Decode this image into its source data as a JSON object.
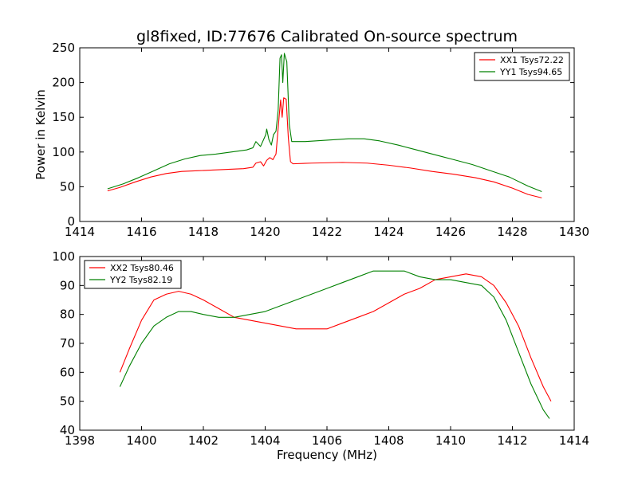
{
  "chart_data": [
    {
      "type": "line",
      "title": "gl8fixed, ID:77676 Calibrated On-source spectrum",
      "xlabel": "",
      "ylabel": "Power in Kelvin",
      "xlim": [
        1414,
        1430
      ],
      "ylim": [
        0,
        250
      ],
      "xticks": [
        1414,
        1416,
        1418,
        1420,
        1422,
        1424,
        1426,
        1428,
        1430
      ],
      "yticks": [
        0,
        50,
        100,
        150,
        200,
        250
      ],
      "grid": false,
      "legend_position": "top-right",
      "series": [
        {
          "name": "XX1 Tsys72.22",
          "color": "#ff0000",
          "points": [
            [
              1414.9,
              44
            ],
            [
              1415.3,
              49
            ],
            [
              1415.8,
              57
            ],
            [
              1416.3,
              64
            ],
            [
              1416.8,
              69
            ],
            [
              1417.3,
              72
            ],
            [
              1417.8,
              73
            ],
            [
              1418.3,
              74
            ],
            [
              1418.8,
              75
            ],
            [
              1419.3,
              76
            ],
            [
              1419.6,
              78
            ],
            [
              1419.7,
              84
            ],
            [
              1419.85,
              86
            ],
            [
              1419.95,
              80
            ],
            [
              1420.05,
              88
            ],
            [
              1420.15,
              92
            ],
            [
              1420.25,
              89
            ],
            [
              1420.35,
              97
            ],
            [
              1420.45,
              150
            ],
            [
              1420.5,
              175
            ],
            [
              1420.55,
              150
            ],
            [
              1420.6,
              178
            ],
            [
              1420.68,
              176
            ],
            [
              1420.75,
              120
            ],
            [
              1420.82,
              86
            ],
            [
              1420.9,
              83
            ],
            [
              1421.5,
              84
            ],
            [
              1422.5,
              85
            ],
            [
              1423.3,
              84
            ],
            [
              1424.0,
              81
            ],
            [
              1424.7,
              77
            ],
            [
              1425.4,
              72
            ],
            [
              1426.1,
              68
            ],
            [
              1426.8,
              63
            ],
            [
              1427.4,
              57
            ],
            [
              1428.0,
              48
            ],
            [
              1428.5,
              39
            ],
            [
              1428.95,
              34
            ]
          ]
        },
        {
          "name": "YY1 Tsys94.65",
          "color": "#008000",
          "points": [
            [
              1414.9,
              47
            ],
            [
              1415.4,
              54
            ],
            [
              1415.9,
              63
            ],
            [
              1416.4,
              73
            ],
            [
              1416.9,
              83
            ],
            [
              1417.4,
              90
            ],
            [
              1417.9,
              95
            ],
            [
              1418.4,
              97
            ],
            [
              1418.9,
              100
            ],
            [
              1419.4,
              103
            ],
            [
              1419.6,
              106
            ],
            [
              1419.7,
              115
            ],
            [
              1419.85,
              108
            ],
            [
              1419.95,
              118
            ],
            [
              1420.02,
              125
            ],
            [
              1420.05,
              133
            ],
            [
              1420.12,
              118
            ],
            [
              1420.2,
              110
            ],
            [
              1420.27,
              125
            ],
            [
              1420.35,
              130
            ],
            [
              1420.42,
              160
            ],
            [
              1420.48,
              235
            ],
            [
              1420.53,
              240
            ],
            [
              1420.57,
              200
            ],
            [
              1420.62,
              242
            ],
            [
              1420.7,
              230
            ],
            [
              1420.78,
              140
            ],
            [
              1420.86,
              115
            ],
            [
              1421.3,
              115
            ],
            [
              1422.0,
              117
            ],
            [
              1422.7,
              119
            ],
            [
              1423.2,
              119
            ],
            [
              1423.7,
              116
            ],
            [
              1424.3,
              110
            ],
            [
              1424.9,
              103
            ],
            [
              1425.5,
              96
            ],
            [
              1426.1,
              89
            ],
            [
              1426.7,
              82
            ],
            [
              1427.3,
              73
            ],
            [
              1427.9,
              64
            ],
            [
              1428.5,
              51
            ],
            [
              1428.95,
              43
            ]
          ]
        }
      ]
    },
    {
      "type": "line",
      "title": "",
      "xlabel": "Frequency (MHz)",
      "ylabel": "",
      "xlim": [
        1398,
        1414
      ],
      "ylim": [
        40,
        100
      ],
      "xticks": [
        1398,
        1400,
        1402,
        1404,
        1406,
        1408,
        1410,
        1412,
        1414
      ],
      "yticks": [
        40,
        50,
        60,
        70,
        80,
        90,
        100
      ],
      "grid": false,
      "legend_position": "top-left",
      "series": [
        {
          "name": "XX2 Tsys80.46",
          "color": "#ff0000",
          "points": [
            [
              1399.3,
              60
            ],
            [
              1399.6,
              68
            ],
            [
              1400.0,
              78
            ],
            [
              1400.4,
              85
            ],
            [
              1400.8,
              87
            ],
            [
              1401.2,
              88
            ],
            [
              1401.6,
              87
            ],
            [
              1402.0,
              85
            ],
            [
              1402.5,
              82
            ],
            [
              1403.0,
              79
            ],
            [
              1403.5,
              78
            ],
            [
              1404.0,
              77
            ],
            [
              1404.5,
              76
            ],
            [
              1405.0,
              75
            ],
            [
              1405.5,
              75
            ],
            [
              1406.0,
              75
            ],
            [
              1406.5,
              77
            ],
            [
              1407.0,
              79
            ],
            [
              1407.5,
              81
            ],
            [
              1408.0,
              84
            ],
            [
              1408.5,
              87
            ],
            [
              1409.0,
              89
            ],
            [
              1409.5,
              92
            ],
            [
              1410.0,
              93
            ],
            [
              1410.5,
              94
            ],
            [
              1411.0,
              93
            ],
            [
              1411.4,
              90
            ],
            [
              1411.8,
              84
            ],
            [
              1412.2,
              76
            ],
            [
              1412.6,
              65
            ],
            [
              1413.0,
              55
            ],
            [
              1413.25,
              50
            ]
          ]
        },
        {
          "name": "YY2 Tsys82.19",
          "color": "#008000",
          "points": [
            [
              1399.3,
              55
            ],
            [
              1399.6,
              62
            ],
            [
              1400.0,
              70
            ],
            [
              1400.4,
              76
            ],
            [
              1400.8,
              79
            ],
            [
              1401.2,
              81
            ],
            [
              1401.6,
              81
            ],
            [
              1402.0,
              80
            ],
            [
              1402.5,
              79
            ],
            [
              1403.0,
              79
            ],
            [
              1403.5,
              80
            ],
            [
              1404.0,
              81
            ],
            [
              1404.5,
              83
            ],
            [
              1405.0,
              85
            ],
            [
              1405.5,
              87
            ],
            [
              1406.0,
              89
            ],
            [
              1406.5,
              91
            ],
            [
              1407.0,
              93
            ],
            [
              1407.5,
              95
            ],
            [
              1408.0,
              95
            ],
            [
              1408.5,
              95
            ],
            [
              1409.0,
              93
            ],
            [
              1409.5,
              92
            ],
            [
              1410.0,
              92
            ],
            [
              1410.5,
              91
            ],
            [
              1411.0,
              90
            ],
            [
              1411.4,
              86
            ],
            [
              1411.8,
              78
            ],
            [
              1412.2,
              67
            ],
            [
              1412.6,
              56
            ],
            [
              1413.0,
              47
            ],
            [
              1413.2,
              44
            ]
          ]
        }
      ]
    }
  ]
}
